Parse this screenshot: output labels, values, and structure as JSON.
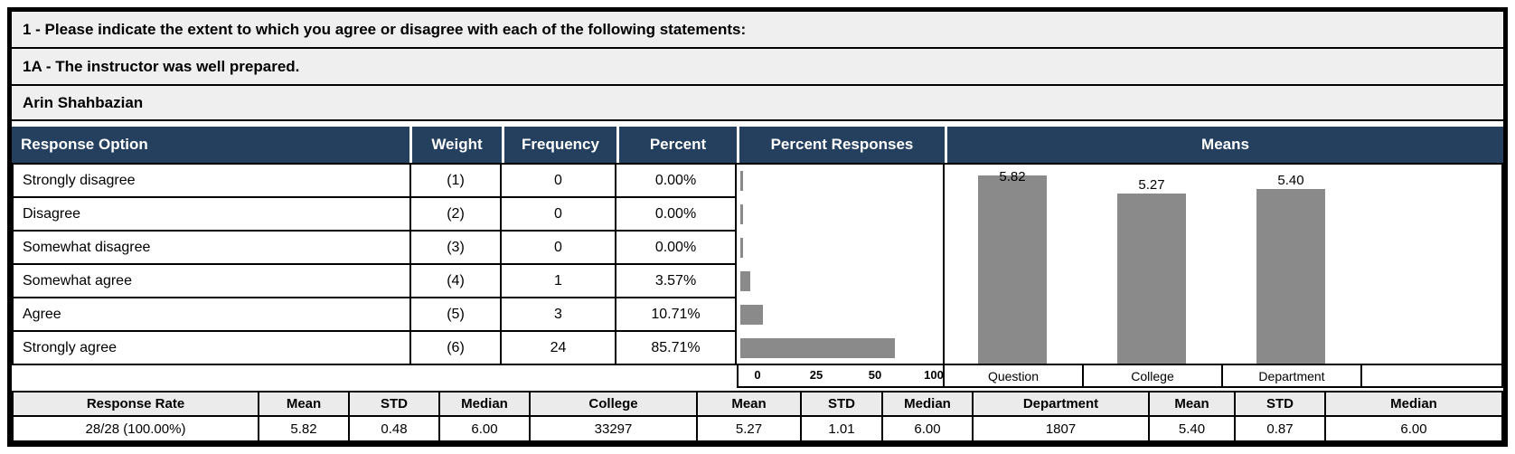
{
  "header": {
    "question_group": "1 - Please indicate the extent to which you agree or disagree with each of the following statements:",
    "question": "1A - The instructor was well prepared.",
    "instructor": "Arin Shahbazian"
  },
  "table": {
    "columns": [
      "Response Option",
      "Weight",
      "Frequency",
      "Percent",
      "Percent Responses",
      "Means"
    ],
    "rows": [
      {
        "option": "Strongly disagree",
        "weight": "(1)",
        "frequency": "0",
        "percent": "0.00%"
      },
      {
        "option": "Disagree",
        "weight": "(2)",
        "frequency": "0",
        "percent": "0.00%"
      },
      {
        "option": "Somewhat disagree",
        "weight": "(3)",
        "frequency": "0",
        "percent": "0.00%"
      },
      {
        "option": "Somewhat agree",
        "weight": "(4)",
        "frequency": "1",
        "percent": "3.57%"
      },
      {
        "option": "Agree",
        "weight": "(5)",
        "frequency": "3",
        "percent": "10.71%"
      },
      {
        "option": "Strongly agree",
        "weight": "(6)",
        "frequency": "24",
        "percent": "85.71%"
      }
    ]
  },
  "chart_data": [
    {
      "type": "bar",
      "orientation": "horizontal",
      "title": "Percent Responses",
      "categories": [
        "Strongly disagree",
        "Disagree",
        "Somewhat disagree",
        "Somewhat agree",
        "Agree",
        "Strongly agree"
      ],
      "values": [
        0,
        0,
        0,
        3.57,
        10.71,
        85.71
      ],
      "xticks": [
        "0",
        "25",
        "50",
        "100"
      ],
      "xlim": [
        0,
        100
      ],
      "bar_color": "#8a8a8a",
      "grid": false
    },
    {
      "type": "bar",
      "orientation": "vertical",
      "title": "Means",
      "categories": [
        "Question",
        "College",
        "Department"
      ],
      "values": [
        5.82,
        5.27,
        5.4
      ],
      "data_labels": [
        "5.82",
        "5.27",
        "5.40"
      ],
      "ylim": [
        0,
        6
      ],
      "bar_color": "#8a8a8a",
      "grid": false
    }
  ],
  "summary": {
    "headers": [
      "Response Rate",
      "Mean",
      "STD",
      "Median",
      "College",
      "Mean",
      "STD",
      "Median",
      "Department",
      "Mean",
      "STD",
      "Median"
    ],
    "values": [
      "28/28 (100.00%)",
      "5.82",
      "0.48",
      "6.00",
      "33297",
      "5.27",
      "1.01",
      "6.00",
      "1807",
      "5.40",
      "0.87",
      "6.00"
    ]
  },
  "colors": {
    "header_bg": "#24405e",
    "header_text": "#ffffff",
    "title_bg": "#efefef",
    "summary_header_bg": "#ebebeb",
    "bar": "#8a8a8a",
    "border": "#000000"
  }
}
